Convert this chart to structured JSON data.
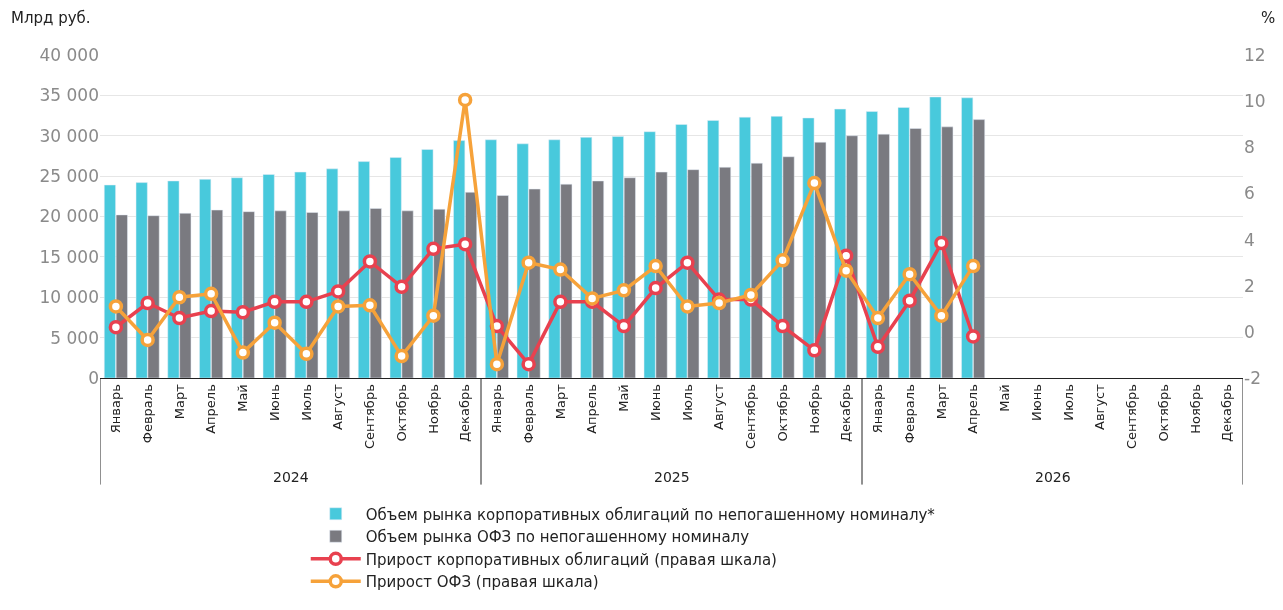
{
  "chart_data": {
    "type": "bar",
    "ylabel": "Млрд руб.",
    "y2label": "%",
    "categories": [
      "Январь",
      "Февраль",
      "Март",
      "Апрель",
      "Май",
      "Июнь",
      "Июль",
      "Август",
      "Сентябрь",
      "Октябрь",
      "Ноябрь",
      "Декабрь",
      "Январь",
      "Февраль",
      "Март",
      "Апрель",
      "Май",
      "Июнь",
      "Июль",
      "Август",
      "Сентябрь",
      "Октябрь",
      "Ноябрь",
      "Декабрь",
      "Январь",
      "Февраль",
      "Март",
      "Апрель",
      "Май",
      "Июнь",
      "Июль",
      "Август",
      "Сентябрь",
      "Октябрь",
      "Ноябрь",
      "Декабрь"
    ],
    "series": [
      {
        "name": "Объем рынка корпоративных облигаций по непогашенному номиналу*",
        "color": "#48c9dc",
        "values": [
          23900,
          24200,
          24400,
          24600,
          24800,
          25200,
          25500,
          25900,
          26800,
          27300,
          28300,
          29400,
          29500,
          29000,
          29500,
          29800,
          29900,
          30500,
          31400,
          31900,
          32300,
          32400,
          32200,
          33300,
          33000,
          33500,
          34800,
          34700,
          null,
          null,
          null,
          null,
          null,
          null,
          null,
          null
        ]
      },
      {
        "name": "Объем рынка ОФЗ по непогашенному номиналу",
        "color": "#7a7a80",
        "values": [
          20200,
          20100,
          20400,
          20800,
          20600,
          20700,
          20500,
          20700,
          21000,
          20700,
          20900,
          23000,
          22600,
          23400,
          24000,
          24400,
          24800,
          25500,
          25800,
          26100,
          26600,
          27400,
          29200,
          30000,
          30200,
          30900,
          31100,
          32000,
          null,
          null,
          null,
          null,
          null,
          null,
          null,
          null
        ]
      },
      {
        "name": "Прирост корпоративных облигаций (правая шкала)",
        "type": "line",
        "axis": "y2",
        "color": "#e8414f",
        "values": [
          0.2,
          1.25,
          0.6,
          0.9,
          0.85,
          1.3,
          1.3,
          1.75,
          3.05,
          1.95,
          3.6,
          3.8,
          0.25,
          -1.4,
          1.3,
          1.3,
          0.25,
          1.9,
          3.0,
          1.4,
          1.4,
          0.25,
          -0.8,
          3.3,
          -0.65,
          1.35,
          3.85,
          -0.2,
          null,
          null,
          null,
          null,
          null,
          null,
          null,
          null
        ]
      },
      {
        "name": "Прирост ОФЗ (правая шкала)",
        "type": "line",
        "axis": "y2",
        "color": "#f6a23a",
        "values": [
          1.1,
          -0.35,
          1.5,
          1.65,
          -0.9,
          0.4,
          -0.95,
          1.1,
          1.15,
          -1.05,
          0.7,
          10.05,
          -1.4,
          3.0,
          2.7,
          1.45,
          1.8,
          2.85,
          1.1,
          1.25,
          1.6,
          3.1,
          6.45,
          2.65,
          0.6,
          2.5,
          0.7,
          2.85,
          null,
          null,
          null,
          null,
          null,
          null,
          null,
          null
        ]
      }
    ],
    "annotations": [
      "2024",
      "2025",
      "2026"
    ],
    "ylim": [
      0,
      40000
    ],
    "yticks": [
      {
        "value": 0,
        "label": "0"
      },
      {
        "value": 5000,
        "label": "5 000"
      },
      {
        "value": 10000,
        "label": "10 000"
      },
      {
        "value": 15000,
        "label": "15 000"
      },
      {
        "value": 20000,
        "label": "20 000"
      },
      {
        "value": 25000,
        "label": "25 000"
      },
      {
        "value": 30000,
        "label": "30 000"
      },
      {
        "value": 35000,
        "label": "35 000"
      },
      {
        "value": 40000,
        "label": "40 000"
      }
    ],
    "y2lim": [
      -2,
      12
    ],
    "y2ticks": [
      -2,
      0,
      2,
      4,
      6,
      8,
      10,
      12
    ],
    "grid": "y",
    "legend": "bottom",
    "marker": "circle",
    "line_style": "solid"
  }
}
